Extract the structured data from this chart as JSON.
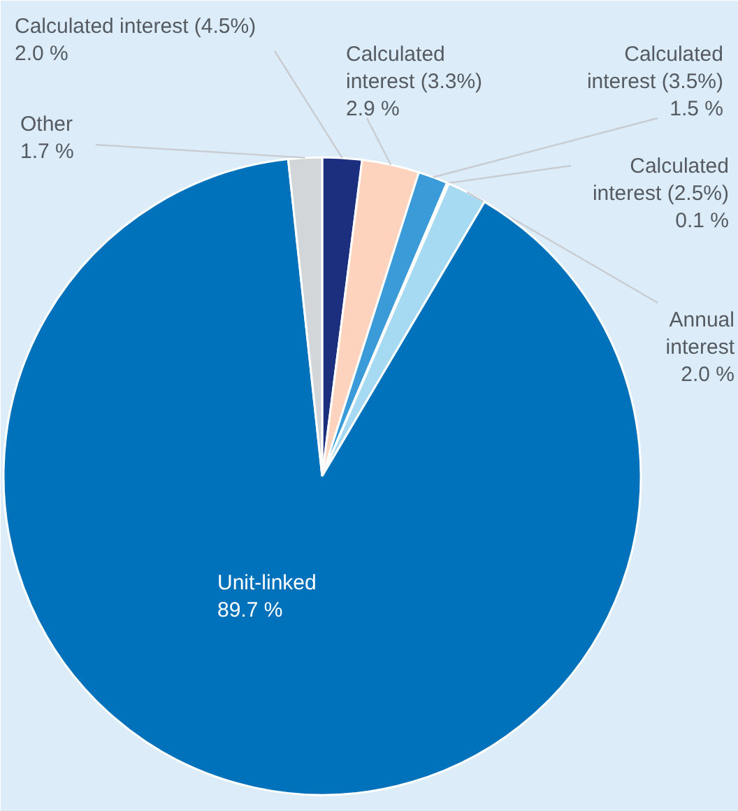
{
  "chart_data": {
    "type": "pie",
    "categories": [
      "Calculated interest (4.5%)",
      "Calculated interest (3.3%)",
      "Calculated interest (3.5%)",
      "Calculated interest (2.5%)",
      "Annual interest",
      "Unit-linked",
      "Other"
    ],
    "values": [
      2.0,
      2.9,
      1.5,
      0.1,
      2.0,
      89.7,
      1.7
    ],
    "colors": [
      "#1b2f7e",
      "#fdd3be",
      "#3a9bd8",
      "#7a3e8c",
      "#a6d9f2",
      "#0071bb",
      "#d3d6d9"
    ],
    "value_labels": [
      "2.0 %",
      "2.9 %",
      "1.5 %",
      "0.1 %",
      "2.0 %",
      "89.7 %",
      "1.7 %"
    ]
  }
}
